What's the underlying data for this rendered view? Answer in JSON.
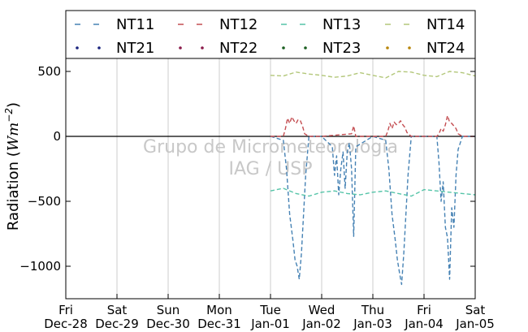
{
  "chart_data": {
    "type": "line",
    "title": "",
    "xlabel": "",
    "ylabel": "Radiation (Wm⁻²)",
    "ylabel_prefix": "Radiation (",
    "ylabel_unit": "Wm",
    "ylabel_exp": "−2",
    "ylabel_suffix": ")",
    "xlim": [
      "2012-12-28",
      "2013-01-05"
    ],
    "ylim": [
      -1250,
      600
    ],
    "grid": "vertical",
    "legend_position": "top",
    "x_ticks": [
      {
        "date": "2012-12-28",
        "day": "Fri",
        "label": "Dec-28"
      },
      {
        "date": "2012-12-29",
        "day": "Sat",
        "label": "Dec-29"
      },
      {
        "date": "2012-12-30",
        "day": "Sun",
        "label": "Dec-30"
      },
      {
        "date": "2012-12-31",
        "day": "Mon",
        "label": "Dec-31"
      },
      {
        "date": "2013-01-01",
        "day": "Tue",
        "label": "Jan-01"
      },
      {
        "date": "2013-01-02",
        "day": "Wed",
        "label": "Jan-02"
      },
      {
        "date": "2013-01-03",
        "day": "Thu",
        "label": "Jan-03"
      },
      {
        "date": "2013-01-04",
        "day": "Fri",
        "label": "Jan-04"
      },
      {
        "date": "2013-01-05",
        "day": "Sat",
        "label": "Jan-05"
      }
    ],
    "y_ticks": [
      {
        "value": 500,
        "label": "500"
      },
      {
        "value": 0,
        "label": "0"
      },
      {
        "value": -500,
        "label": "−500"
      },
      {
        "value": -1000,
        "label": "−1000"
      }
    ],
    "watermark": [
      "Grupo de Micrometeorologia",
      "IAG / USP"
    ],
    "series": [
      {
        "name": "NT11",
        "style": "dashed",
        "color": "#4682b4",
        "x": [
          "2013-01-01 00:00",
          "2013-01-01 06:00",
          "2013-01-01 07:30",
          "2013-01-01 09:00",
          "2013-01-01 10:30",
          "2013-01-01 11:30",
          "2013-01-01 12:30",
          "2013-01-01 13:30",
          "2013-01-01 14:30",
          "2013-01-01 15:30",
          "2013-01-01 16:30",
          "2013-01-01 18:00",
          "2013-01-02 00:00",
          "2013-01-02 05:00",
          "2013-01-02 06:00",
          "2013-01-02 07:00",
          "2013-01-02 08:00",
          "2013-01-02 09:00",
          "2013-01-02 10:00",
          "2013-01-02 11:00",
          "2013-01-02 12:00",
          "2013-01-02 13:00",
          "2013-01-02 14:00",
          "2013-01-02 15:00",
          "2013-01-02 16:00",
          "2013-01-03 00:00",
          "2013-01-03 06:00",
          "2013-01-03 07:30",
          "2013-01-03 09:00",
          "2013-01-03 10:30",
          "2013-01-03 11:30",
          "2013-01-03 12:30",
          "2013-01-03 13:30",
          "2013-01-03 14:30",
          "2013-01-03 15:30",
          "2013-01-03 16:30",
          "2013-01-03 18:00",
          "2013-01-04 00:00",
          "2013-01-04 06:00",
          "2013-01-04 07:00",
          "2013-01-04 08:00",
          "2013-01-04 09:00",
          "2013-01-04 10:00",
          "2013-01-04 11:00",
          "2013-01-04 12:00",
          "2013-01-04 13:00",
          "2013-01-04 14:00",
          "2013-01-04 15:00",
          "2013-01-04 16:00",
          "2013-01-04 18:00",
          "2013-01-05 00:00"
        ],
        "y": [
          0,
          -30,
          -250,
          -600,
          -800,
          -950,
          -1000,
          -1100,
          -900,
          -600,
          -300,
          0,
          0,
          -80,
          -300,
          -150,
          -450,
          -250,
          -120,
          -400,
          -120,
          -50,
          -250,
          -770,
          -80,
          0,
          -30,
          -250,
          -600,
          -800,
          -950,
          -1050,
          -1140,
          -900,
          -600,
          -300,
          0,
          0,
          0,
          -200,
          -500,
          -350,
          -700,
          -780,
          -1100,
          -550,
          -700,
          -300,
          -100,
          0,
          0
        ]
      },
      {
        "name": "NT12",
        "style": "dashed",
        "color": "#c44e52",
        "x": [
          "2013-01-01 00:00",
          "2013-01-01 06:00",
          "2013-01-01 07:00",
          "2013-01-01 08:00",
          "2013-01-01 09:00",
          "2013-01-01 10:00",
          "2013-01-01 11:00",
          "2013-01-01 12:00",
          "2013-01-01 13:00",
          "2013-01-01 14:00",
          "2013-01-01 15:00",
          "2013-01-01 16:00",
          "2013-01-01 18:00",
          "2013-01-02 00:00",
          "2013-01-02 14:00",
          "2013-01-02 15:00",
          "2013-01-02 16:00",
          "2013-01-03 00:00",
          "2013-01-03 06:00",
          "2013-01-03 07:00",
          "2013-01-03 08:00",
          "2013-01-03 09:00",
          "2013-01-03 10:00",
          "2013-01-03 11:00",
          "2013-01-03 12:00",
          "2013-01-03 13:00",
          "2013-01-03 14:00",
          "2013-01-03 15:00",
          "2013-01-03 16:00",
          "2013-01-03 18:00",
          "2013-01-04 00:00",
          "2013-01-04 06:00",
          "2013-01-04 07:00",
          "2013-01-04 08:00",
          "2013-01-04 09:00",
          "2013-01-04 10:00",
          "2013-01-04 11:00",
          "2013-01-04 12:00",
          "2013-01-04 13:00",
          "2013-01-04 14:00",
          "2013-01-04 15:00",
          "2013-01-04 16:00",
          "2013-01-04 18:00",
          "2013-01-05 00:00"
        ],
        "y": [
          0,
          0,
          60,
          140,
          100,
          150,
          120,
          100,
          130,
          120,
          80,
          20,
          0,
          0,
          20,
          80,
          0,
          0,
          0,
          40,
          100,
          60,
          110,
          90,
          100,
          120,
          90,
          70,
          30,
          0,
          0,
          0,
          20,
          60,
          40,
          90,
          160,
          110,
          100,
          80,
          60,
          20,
          0,
          0
        ]
      },
      {
        "name": "NT13",
        "style": "dashed",
        "color": "#55c4a8",
        "x": [
          "2013-01-01 00:00",
          "2013-01-01 06:00",
          "2013-01-01 12:00",
          "2013-01-01 18:00",
          "2013-01-02 00:00",
          "2013-01-02 06:00",
          "2013-01-02 12:00",
          "2013-01-02 18:00",
          "2013-01-03 00:00",
          "2013-01-03 06:00",
          "2013-01-03 12:00",
          "2013-01-03 18:00",
          "2013-01-04 00:00",
          "2013-01-04 06:00",
          "2013-01-04 12:00",
          "2013-01-04 18:00",
          "2013-01-05 00:00"
        ],
        "y": [
          -420,
          -400,
          -440,
          -460,
          -430,
          -420,
          -440,
          -450,
          -430,
          -420,
          -440,
          -460,
          -410,
          -420,
          -430,
          -440,
          -450
        ]
      },
      {
        "name": "NT14",
        "style": "dashed",
        "color": "#b3c77a",
        "x": [
          "2013-01-01 00:00",
          "2013-01-01 06:00",
          "2013-01-01 12:00",
          "2013-01-01 18:00",
          "2013-01-02 00:00",
          "2013-01-02 06:00",
          "2013-01-02 12:00",
          "2013-01-02 18:00",
          "2013-01-03 00:00",
          "2013-01-03 06:00",
          "2013-01-03 12:00",
          "2013-01-03 18:00",
          "2013-01-04 00:00",
          "2013-01-04 06:00",
          "2013-01-04 12:00",
          "2013-01-04 18:00",
          "2013-01-05 00:00"
        ],
        "y": [
          470,
          465,
          495,
          480,
          470,
          455,
          465,
          490,
          470,
          450,
          500,
          495,
          470,
          460,
          500,
          490,
          465
        ]
      },
      {
        "name": "NT21",
        "style": "dotted",
        "color": "#1a237e",
        "x": [],
        "y": []
      },
      {
        "name": "NT22",
        "style": "dotted",
        "color": "#8b1a4a",
        "x": [],
        "y": []
      },
      {
        "name": "NT23",
        "style": "dotted",
        "color": "#1b5e20",
        "x": [],
        "y": []
      },
      {
        "name": "NT24",
        "style": "dotted",
        "color": "#b8860b",
        "x": [],
        "y": []
      }
    ]
  }
}
